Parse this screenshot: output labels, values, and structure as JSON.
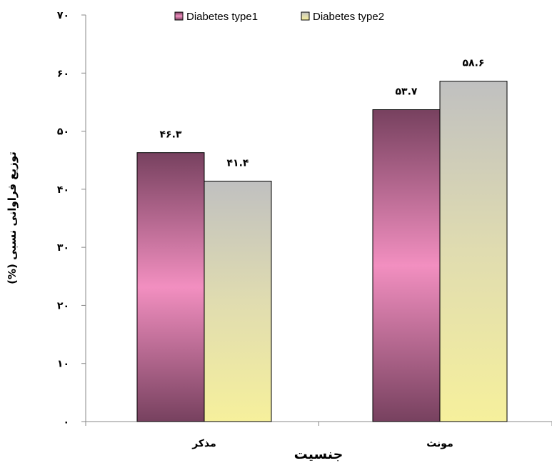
{
  "chart_data": {
    "type": "bar",
    "title": "",
    "xlabel": "جنسیت",
    "ylabel": "توزیع فراوانی نسبی (%)",
    "ylim": [
      0,
      70
    ],
    "y_ticks": [
      0,
      10,
      20,
      30,
      40,
      50,
      60,
      70
    ],
    "y_tick_labels": [
      "۰",
      "۱۰",
      "۲۰",
      "۳۰",
      "۴۰",
      "۵۰",
      "۶۰",
      "۷۰"
    ],
    "categories": [
      "مذکر",
      "مونث"
    ],
    "series": [
      {
        "name": "Diabetes type1",
        "values": [
          46.3,
          53.7
        ],
        "value_labels": [
          "۴۶.۳",
          "۵۳.۷"
        ],
        "colors": {
          "edge": "#77415f",
          "center": "#f28fc0"
        }
      },
      {
        "name": "Diabetes type2",
        "values": [
          41.4,
          58.6
        ],
        "value_labels": [
          "۴۱.۴",
          "۵۸.۶"
        ],
        "colors": {
          "top": "#c0c0c0",
          "bottom": "#f6f09c"
        }
      }
    ],
    "legend_position": "top",
    "grid": false
  }
}
